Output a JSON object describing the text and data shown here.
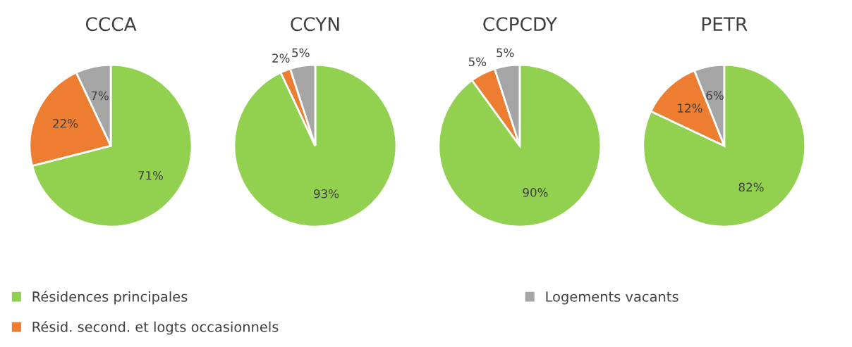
{
  "chart_data": [
    {
      "type": "pie",
      "title": "CCCA",
      "categories": [
        "Résidences principales",
        "Résid. second. et logts occasionnels",
        "Logements vacants"
      ],
      "values": [
        71,
        22,
        7
      ],
      "value_labels": [
        "71%",
        "22%",
        "7%"
      ],
      "colors": [
        "#92d050",
        "#ed7d31",
        "#a5a5a5"
      ],
      "legend": "bottom"
    },
    {
      "type": "pie",
      "title": "CCYN",
      "categories": [
        null,
        null,
        null
      ],
      "values": [
        93,
        2,
        5
      ],
      "value_labels": [
        "93%",
        "2%",
        "5%"
      ],
      "colors": [
        "#92d050",
        "#ed7d31",
        "#a5a5a5"
      ]
    },
    {
      "type": "pie",
      "title": "CCPCDY",
      "categories": [
        null,
        null,
        null
      ],
      "values": [
        90,
        5,
        5
      ],
      "value_labels": [
        "90%",
        "5%",
        "5%"
      ],
      "colors": [
        "#92d050",
        "#ed7d31",
        "#a5a5a5"
      ]
    },
    {
      "type": "pie",
      "title": "PETR",
      "categories": [
        null,
        null,
        null
      ],
      "values": [
        82,
        12,
        6
      ],
      "value_labels": [
        "82%",
        "12%",
        "6%"
      ],
      "colors": [
        "#92d050",
        "#ed7d31",
        "#a5a5a5"
      ]
    }
  ]
}
